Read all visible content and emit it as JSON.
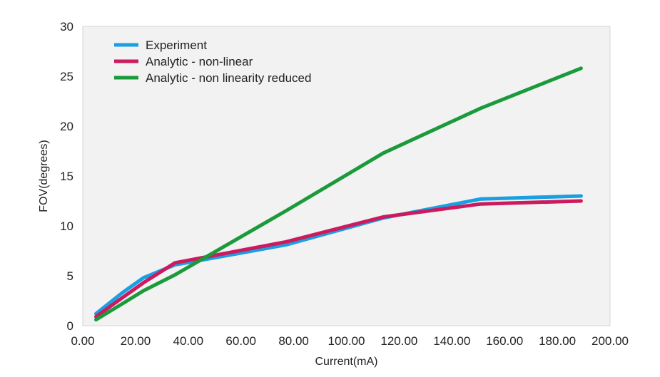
{
  "chart_data": {
    "type": "line",
    "xlabel": "Current(mA)",
    "ylabel": "FOV(degrees)",
    "xlim": [
      0,
      200
    ],
    "ylim": [
      0,
      30
    ],
    "x_ticks": [
      "0.00",
      "20.00",
      "40.00",
      "60.00",
      "80.00",
      "100.00",
      "120.00",
      "140.00",
      "160.00",
      "180.00",
      "200.00"
    ],
    "y_ticks": [
      "0",
      "5",
      "10",
      "15",
      "20",
      "25",
      "30"
    ],
    "grid": false,
    "legend_position": "top-left",
    "plot_background": "#f2f2f2",
    "series": [
      {
        "name": "Experiment",
        "color": "#1a9fe0",
        "x": [
          5,
          15,
          23,
          35,
          77,
          114,
          151,
          189
        ],
        "y": [
          1.2,
          3.3,
          4.8,
          6.1,
          8.1,
          10.8,
          12.7,
          13.0
        ]
      },
      {
        "name": "Analytic - non-linear",
        "color": "#cc1a5e",
        "x": [
          5,
          15,
          23,
          35,
          77,
          114,
          151,
          189
        ],
        "y": [
          0.9,
          2.8,
          4.3,
          6.3,
          8.4,
          10.9,
          12.2,
          12.5
        ]
      },
      {
        "name": "Analytic - non linearity reduced",
        "color": "#1a9a3a",
        "x": [
          5,
          15,
          23,
          35,
          77,
          114,
          151,
          189
        ],
        "y": [
          0.6,
          2.2,
          3.5,
          5.1,
          11.5,
          17.3,
          21.8,
          25.8
        ]
      }
    ]
  }
}
